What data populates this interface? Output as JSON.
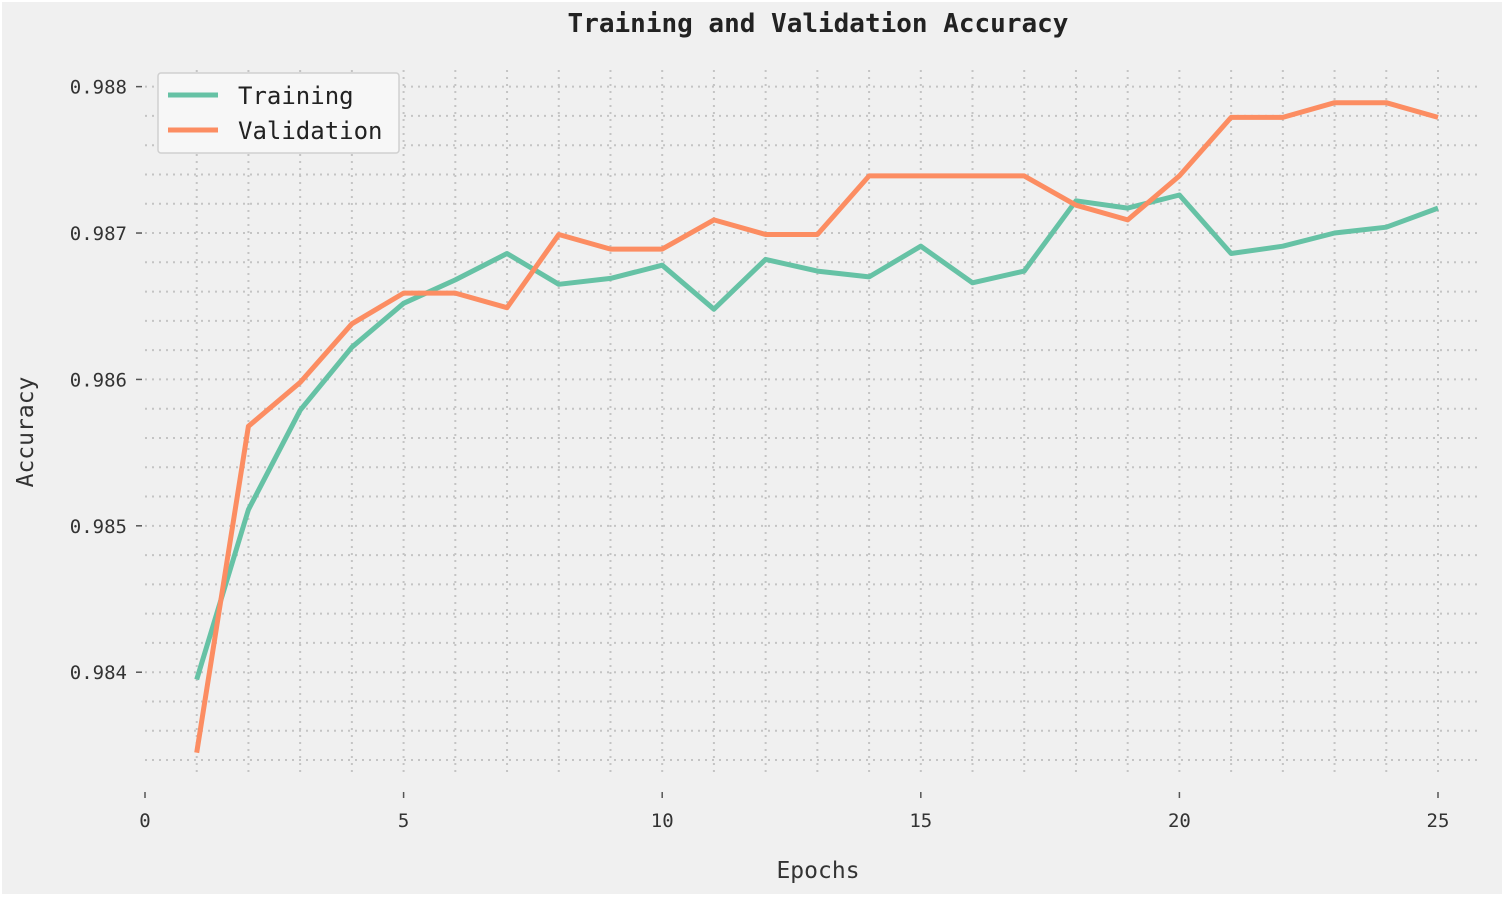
{
  "chart_data": {
    "type": "line",
    "title": "Training and Validation Accuracy",
    "xlabel": "Epochs",
    "ylabel": "Accuracy",
    "xlim": [
      0,
      25
    ],
    "ylim": [
      0.98325,
      0.9881
    ],
    "x_ticks": [
      0,
      5,
      10,
      15,
      20,
      25
    ],
    "x_tick_labels": [
      "0",
      "5",
      "10",
      "15",
      "20",
      "25"
    ],
    "y_ticks": [
      0.984,
      0.985,
      0.986,
      0.987,
      0.988
    ],
    "y_tick_labels": [
      "0.984",
      "0.985",
      "0.986",
      "0.987",
      "0.988"
    ],
    "grid": "dotted",
    "legend_position": "top-left",
    "x": [
      1,
      2,
      3,
      4,
      5,
      6,
      7,
      8,
      9,
      10,
      11,
      12,
      13,
      14,
      15,
      16,
      17,
      18,
      19,
      20,
      21,
      22,
      23,
      24,
      25
    ],
    "series": [
      {
        "name": "Training",
        "color": "#66c2a5",
        "values": [
          0.98395,
          0.98511,
          0.98579,
          0.98622,
          0.98652,
          0.98668,
          0.98686,
          0.98665,
          0.98669,
          0.98678,
          0.98648,
          0.98682,
          0.98674,
          0.9867,
          0.98691,
          0.98666,
          0.98674,
          0.98722,
          0.98717,
          0.98726,
          0.98686,
          0.98691,
          0.987,
          0.98704,
          0.98717
        ]
      },
      {
        "name": "Validation",
        "color": "#fc8d62",
        "values": [
          0.98345,
          0.98568,
          0.98598,
          0.98638,
          0.98659,
          0.98659,
          0.98649,
          0.98699,
          0.98689,
          0.98689,
          0.98709,
          0.98699,
          0.98699,
          0.98739,
          0.98739,
          0.98739,
          0.98739,
          0.98719,
          0.98709,
          0.98739,
          0.98779,
          0.98779,
          0.98789,
          0.98789,
          0.98779
        ]
      }
    ]
  }
}
